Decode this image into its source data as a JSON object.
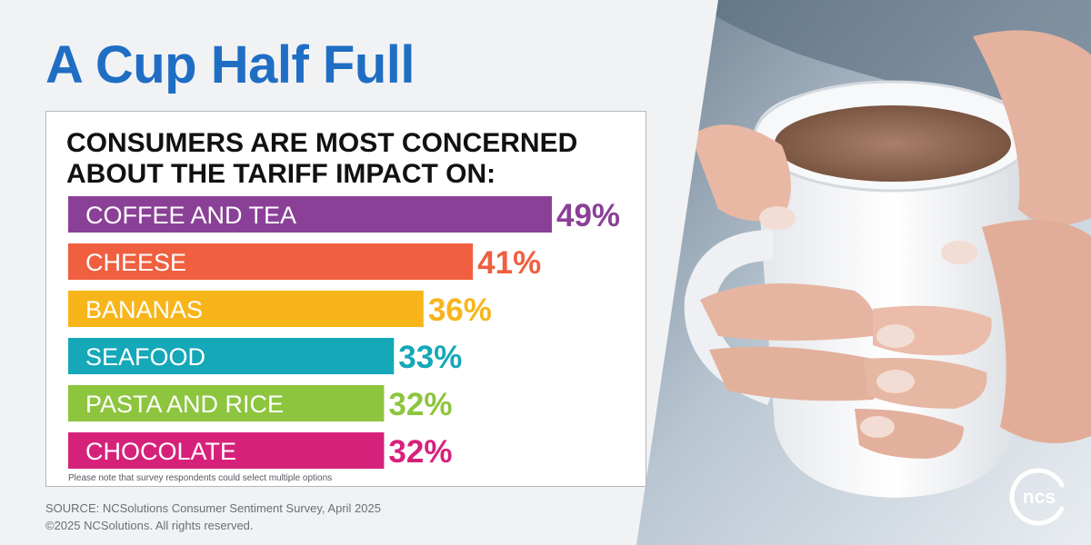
{
  "headline": "A Cup Half Full",
  "chart_data": {
    "type": "bar",
    "orientation": "horizontal",
    "title_line1": "CONSUMERS ARE MOST CONCERNED",
    "title_line2": "ABOUT THE TARIFF IMPACT ON:",
    "categories": [
      "COFFEE AND TEA",
      "CHEESE",
      "BANANAS",
      "SEAFOOD",
      "PASTA AND RICE",
      "CHOCOLATE"
    ],
    "values": [
      49,
      41,
      36,
      33,
      32,
      32
    ],
    "value_labels": [
      "49%",
      "41%",
      "36%",
      "33%",
      "32%",
      "32%"
    ],
    "colors": [
      "#8a4096",
      "#f05f3f",
      "#f8b51a",
      "#14a8b8",
      "#8dc53e",
      "#d6217b"
    ],
    "unit": "%",
    "xlim": [
      0,
      49
    ],
    "footnote": "Please note that survey respondents could select multiple options"
  },
  "source": "SOURCE: NCSolutions Consumer Sentiment Survey, April 2025",
  "copyright": "©2025 NCSolutions. All rights reserved.",
  "logo_text": "ncs"
}
